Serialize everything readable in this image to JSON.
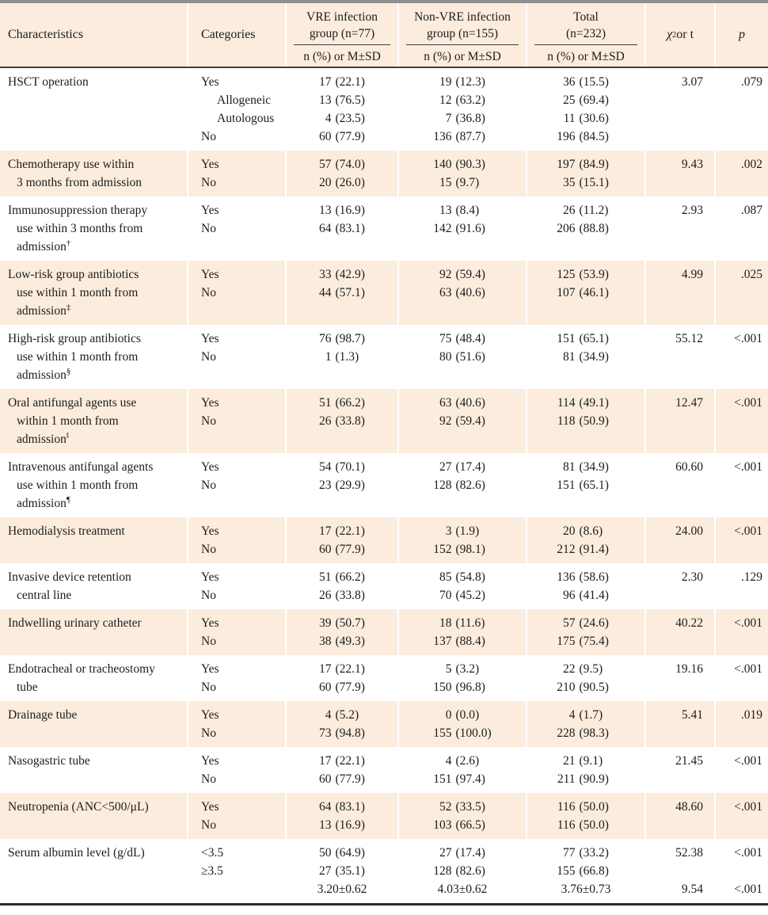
{
  "colors": {
    "shade": "#fcecdd",
    "top_border": "#8f8f8f",
    "header_rule": "#3f3f3f",
    "bottom_border": "#2a2a2a",
    "text": "#1c1c1c"
  },
  "header": {
    "characteristics": "Characteristics",
    "categories": "Categories",
    "groups": [
      {
        "line1": "VRE infection",
        "line2": "group (n=77)",
        "measure": "n (%) or M±SD"
      },
      {
        "line1": "Non-VRE infection",
        "line2": "group (n=155)",
        "measure": "n (%) or M±SD"
      },
      {
        "line1": "Total",
        "line2": "(n=232)",
        "measure": "n (%) or M±SD"
      }
    ],
    "chi": {
      "base": "χ",
      "sup": "2",
      "rest": " or t"
    },
    "p": "p"
  },
  "blocks": [
    {
      "label": [
        "HSCT operation"
      ],
      "sup": "",
      "shaded": false,
      "rows": [
        {
          "cat": "Yes",
          "indent": false,
          "vre": "17 (22.1)",
          "non": "19 (12.3)",
          "tot": "36 (15.5)",
          "chi": "3.07",
          "p": ".079"
        },
        {
          "cat": "Allogeneic",
          "indent": true,
          "vre": "13 (76.5)",
          "non": "12 (63.2)",
          "tot": "25 (69.4)",
          "chi": "",
          "p": ""
        },
        {
          "cat": "Autologous",
          "indent": true,
          "vre": "4 (23.5)",
          "non": "7 (36.8)",
          "tot": "11 (30.6)",
          "chi": "",
          "p": ""
        },
        {
          "cat": "No",
          "indent": false,
          "vre": "60 (77.9)",
          "non": "136 (87.7)",
          "tot": "196 (84.5)",
          "chi": "",
          "p": ""
        }
      ]
    },
    {
      "label": [
        "Chemotherapy use within",
        "3 months from admission"
      ],
      "sup": "",
      "shaded": true,
      "rows": [
        {
          "cat": "Yes",
          "indent": false,
          "vre": "57 (74.0)",
          "non": "140 (90.3)",
          "tot": "197 (84.9)",
          "chi": "9.43",
          "p": ".002"
        },
        {
          "cat": "No",
          "indent": false,
          "vre": "20 (26.0)",
          "non": "15 (9.7)",
          "tot": "35 (15.1)",
          "chi": "",
          "p": ""
        }
      ]
    },
    {
      "label": [
        "Immunosuppression therapy",
        "use within 3 months from",
        "admission"
      ],
      "sup": "†",
      "shaded": false,
      "rows": [
        {
          "cat": "Yes",
          "indent": false,
          "vre": "13 (16.9)",
          "non": "13 (8.4)",
          "tot": "26 (11.2)",
          "chi": "2.93",
          "p": ".087"
        },
        {
          "cat": "No",
          "indent": false,
          "vre": "64 (83.1)",
          "non": "142 (91.6)",
          "tot": "206 (88.8)",
          "chi": "",
          "p": ""
        }
      ]
    },
    {
      "label": [
        "Low-risk group antibiotics",
        "use within 1 month from",
        "admission"
      ],
      "sup": "‡",
      "shaded": true,
      "rows": [
        {
          "cat": "Yes",
          "indent": false,
          "vre": "33 (42.9)",
          "non": "92 (59.4)",
          "tot": "125 (53.9)",
          "chi": "4.99",
          "p": ".025"
        },
        {
          "cat": "No",
          "indent": false,
          "vre": "44 (57.1)",
          "non": "63 (40.6)",
          "tot": "107 (46.1)",
          "chi": "",
          "p": ""
        }
      ]
    },
    {
      "label": [
        "High-risk group antibiotics",
        "use within 1 month from",
        "admission"
      ],
      "sup": "§",
      "shaded": false,
      "rows": [
        {
          "cat": "Yes",
          "indent": false,
          "vre": "76 (98.7)",
          "non": "75 (48.4)",
          "tot": "151 (65.1)",
          "chi": "55.12",
          "p": "<.001"
        },
        {
          "cat": "No",
          "indent": false,
          "vre": "1 (1.3)",
          "non": "80 (51.6)",
          "tot": "81 (34.9)",
          "chi": "",
          "p": ""
        }
      ]
    },
    {
      "label": [
        "Oral antifungal agents use",
        "within 1 month from",
        "admission"
      ],
      "sup": "‖",
      "shaded": true,
      "rows": [
        {
          "cat": "Yes",
          "indent": false,
          "vre": "51 (66.2)",
          "non": "63 (40.6)",
          "tot": "114 (49.1)",
          "chi": "12.47",
          "p": "<.001"
        },
        {
          "cat": "No",
          "indent": false,
          "vre": "26 (33.8)",
          "non": "92 (59.4)",
          "tot": "118 (50.9)",
          "chi": "",
          "p": ""
        }
      ]
    },
    {
      "label": [
        "Intravenous antifungal agents",
        "use within 1 month from",
        "admission"
      ],
      "sup": "¶",
      "shaded": false,
      "rows": [
        {
          "cat": "Yes",
          "indent": false,
          "vre": "54 (70.1)",
          "non": "27 (17.4)",
          "tot": "81 (34.9)",
          "chi": "60.60",
          "p": "<.001"
        },
        {
          "cat": "No",
          "indent": false,
          "vre": "23 (29.9)",
          "non": "128 (82.6)",
          "tot": "151 (65.1)",
          "chi": "",
          "p": ""
        }
      ]
    },
    {
      "label": [
        "Hemodialysis treatment"
      ],
      "sup": "",
      "shaded": true,
      "rows": [
        {
          "cat": "Yes",
          "indent": false,
          "vre": "17 (22.1)",
          "non": "3 (1.9)",
          "tot": "20 (8.6)",
          "chi": "24.00",
          "p": "<.001"
        },
        {
          "cat": "No",
          "indent": false,
          "vre": "60 (77.9)",
          "non": "152 (98.1)",
          "tot": "212 (91.4)",
          "chi": "",
          "p": ""
        }
      ]
    },
    {
      "label": [
        "Invasive device retention",
        "central line"
      ],
      "sup": "",
      "shaded": false,
      "rows": [
        {
          "cat": "Yes",
          "indent": false,
          "vre": "51 (66.2)",
          "non": "85 (54.8)",
          "tot": "136 (58.6)",
          "chi": "2.30",
          "p": ".129"
        },
        {
          "cat": "No",
          "indent": false,
          "vre": "26 (33.8)",
          "non": "70 (45.2)",
          "tot": "96 (41.4)",
          "chi": "",
          "p": ""
        }
      ]
    },
    {
      "label": [
        "Indwelling urinary catheter"
      ],
      "sup": "",
      "shaded": true,
      "rows": [
        {
          "cat": "Yes",
          "indent": false,
          "vre": "39 (50.7)",
          "non": "18 (11.6)",
          "tot": "57 (24.6)",
          "chi": "40.22",
          "p": "<.001"
        },
        {
          "cat": "No",
          "indent": false,
          "vre": "38 (49.3)",
          "non": "137 (88.4)",
          "tot": "175 (75.4)",
          "chi": "",
          "p": ""
        }
      ]
    },
    {
      "label": [
        "Endotracheal or tracheostomy",
        "tube"
      ],
      "sup": "",
      "shaded": false,
      "rows": [
        {
          "cat": "Yes",
          "indent": false,
          "vre": "17 (22.1)",
          "non": "5 (3.2)",
          "tot": "22 (9.5)",
          "chi": "19.16",
          "p": "<.001"
        },
        {
          "cat": "No",
          "indent": false,
          "vre": "60 (77.9)",
          "non": "150 (96.8)",
          "tot": "210 (90.5)",
          "chi": "",
          "p": ""
        }
      ]
    },
    {
      "label": [
        "Drainage tube"
      ],
      "sup": "",
      "shaded": true,
      "rows": [
        {
          "cat": "Yes",
          "indent": false,
          "vre": "4 (5.2)",
          "non": "0 (0.0)",
          "tot": "4 (1.7)",
          "chi": "5.41",
          "p": ".019"
        },
        {
          "cat": "No",
          "indent": false,
          "vre": "73 (94.8)",
          "non": "155 (100.0)",
          "tot": "228 (98.3)",
          "chi": "",
          "p": ""
        }
      ]
    },
    {
      "label": [
        "Nasogastric tube"
      ],
      "sup": "",
      "shaded": false,
      "rows": [
        {
          "cat": "Yes",
          "indent": false,
          "vre": "17 (22.1)",
          "non": "4 (2.6)",
          "tot": "21 (9.1)",
          "chi": "21.45",
          "p": "<.001"
        },
        {
          "cat": "No",
          "indent": false,
          "vre": "60 (77.9)",
          "non": "151 (97.4)",
          "tot": "211 (90.9)",
          "chi": "",
          "p": ""
        }
      ]
    },
    {
      "label": [
        "Neutropenia (ANC<500/μL)"
      ],
      "sup": "",
      "shaded": true,
      "rows": [
        {
          "cat": "Yes",
          "indent": false,
          "vre": "64 (83.1)",
          "non": "52 (33.5)",
          "tot": "116 (50.0)",
          "chi": "48.60",
          "p": "<.001"
        },
        {
          "cat": "No",
          "indent": false,
          "vre": "13 (16.9)",
          "non": "103 (66.5)",
          "tot": "116 (50.0)",
          "chi": "",
          "p": ""
        }
      ]
    },
    {
      "label": [
        "Serum albumin level (g/dL)"
      ],
      "sup": "",
      "shaded": false,
      "rows": [
        {
          "cat": "<3.5",
          "indent": false,
          "vre": "50 (64.9)",
          "non": "27 (17.4)",
          "tot": "77 (33.2)",
          "chi": "52.38",
          "p": "<.001"
        },
        {
          "cat": "≥3.5",
          "indent": false,
          "vre": "27 (35.1)",
          "non": "128 (82.6)",
          "tot": "155 (66.8)",
          "chi": "",
          "p": ""
        },
        {
          "cat": "",
          "indent": false,
          "vre": "3.20±0.62",
          "non": "4.03±0.62",
          "tot": "3.76±0.73",
          "chi": "9.54",
          "p": "<.001"
        }
      ]
    }
  ]
}
